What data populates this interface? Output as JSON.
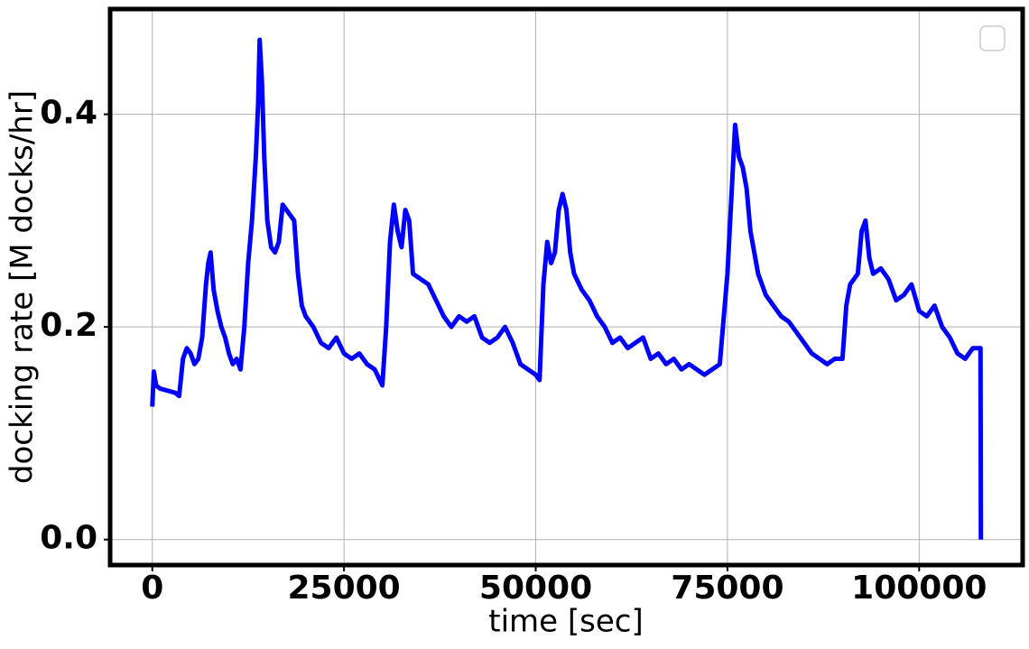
{
  "chart_data": {
    "type": "line",
    "x_label": "time [sec]",
    "y_label": "docking rate [M docks/hr]",
    "color": "#0000ff",
    "grid": true,
    "xlim": [
      -5500,
      113500
    ],
    "ylim": [
      -0.024,
      0.499
    ],
    "xticks": [
      0,
      25000,
      50000,
      75000,
      100000
    ],
    "yticks": [
      {
        "value": 0,
        "label": "0.0"
      },
      0.2,
      0.4
    ],
    "x": [
      0,
      200,
      500,
      1000,
      2000,
      3000,
      3500,
      4000,
      4500,
      5000,
      5500,
      6000,
      6500,
      7000,
      7300,
      7600,
      8000,
      8500,
      9000,
      9500,
      10000,
      10500,
      11000,
      11500,
      12000,
      12500,
      13000,
      13500,
      13800,
      14000,
      14300,
      14600,
      15000,
      15500,
      16000,
      16500,
      17000,
      17500,
      18000,
      18500,
      19000,
      19500,
      20000,
      21000,
      22000,
      23000,
      24000,
      25000,
      26000,
      27000,
      28000,
      29000,
      30000,
      30500,
      31000,
      31500,
      32000,
      32500,
      33000,
      33500,
      34000,
      35000,
      36000,
      37000,
      38000,
      39000,
      40000,
      41000,
      42000,
      43000,
      44000,
      45000,
      46000,
      47000,
      48000,
      49000,
      50000,
      50500,
      51000,
      51500,
      52000,
      52500,
      53000,
      53500,
      54000,
      54500,
      55000,
      56000,
      57000,
      58000,
      59000,
      60000,
      61000,
      62000,
      63000,
      64000,
      65000,
      66000,
      67000,
      68000,
      69000,
      70000,
      71000,
      72000,
      73000,
      74000,
      75000,
      75500,
      76000,
      76500,
      77000,
      77500,
      78000,
      78500,
      79000,
      80000,
      81000,
      82000,
      83000,
      84000,
      85000,
      86000,
      87000,
      88000,
      89000,
      90000,
      90500,
      91000,
      92000,
      92500,
      93000,
      93500,
      94000,
      95000,
      96000,
      97000,
      98000,
      99000,
      100000,
      101000,
      102000,
      103000,
      104000,
      105000,
      106000,
      107000,
      107500,
      108000,
      108050
    ],
    "values": [
      0.125,
      0.158,
      0.145,
      0.142,
      0.14,
      0.138,
      0.135,
      0.17,
      0.18,
      0.175,
      0.165,
      0.17,
      0.19,
      0.24,
      0.26,
      0.27,
      0.235,
      0.215,
      0.2,
      0.19,
      0.175,
      0.165,
      0.17,
      0.16,
      0.2,
      0.26,
      0.3,
      0.36,
      0.41,
      0.47,
      0.43,
      0.36,
      0.3,
      0.275,
      0.27,
      0.28,
      0.315,
      0.31,
      0.305,
      0.3,
      0.25,
      0.22,
      0.21,
      0.2,
      0.185,
      0.18,
      0.19,
      0.175,
      0.17,
      0.175,
      0.165,
      0.16,
      0.145,
      0.2,
      0.28,
      0.315,
      0.29,
      0.275,
      0.31,
      0.3,
      0.25,
      0.245,
      0.24,
      0.225,
      0.21,
      0.2,
      0.21,
      0.205,
      0.21,
      0.19,
      0.185,
      0.19,
      0.2,
      0.185,
      0.165,
      0.16,
      0.155,
      0.15,
      0.24,
      0.28,
      0.26,
      0.27,
      0.31,
      0.325,
      0.31,
      0.27,
      0.25,
      0.235,
      0.225,
      0.21,
      0.2,
      0.185,
      0.19,
      0.18,
      0.185,
      0.19,
      0.17,
      0.175,
      0.165,
      0.17,
      0.16,
      0.165,
      0.16,
      0.155,
      0.16,
      0.165,
      0.25,
      0.32,
      0.39,
      0.36,
      0.35,
      0.33,
      0.29,
      0.27,
      0.25,
      0.23,
      0.22,
      0.21,
      0.205,
      0.195,
      0.185,
      0.175,
      0.17,
      0.165,
      0.17,
      0.17,
      0.22,
      0.24,
      0.25,
      0.29,
      0.3,
      0.265,
      0.25,
      0.255,
      0.245,
      0.225,
      0.23,
      0.24,
      0.215,
      0.21,
      0.22,
      0.2,
      0.19,
      0.175,
      0.17,
      0.18,
      0.18,
      0.18,
      0
    ]
  }
}
